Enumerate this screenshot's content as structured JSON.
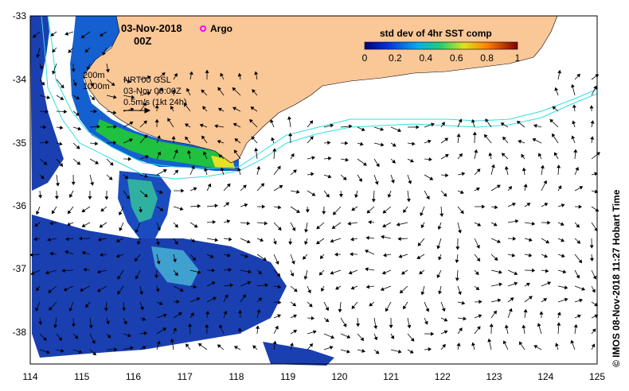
{
  "header": {
    "date": "03-Nov-2018",
    "time": "00Z",
    "argo_label": "Argo"
  },
  "colorbar": {
    "title": "std dev of 4hr SST comp",
    "ticks": [
      "0",
      "0.2",
      "0.4",
      "0.6",
      "0.8",
      "1"
    ]
  },
  "annotations": {
    "depth_200": "200m",
    "depth_1000": "1000m",
    "product": "NRT00 GSL",
    "product_time": "03-Nov 00:00Z",
    "scale_label": "0.5m/s (1kt 24h)"
  },
  "axes": {
    "x_ticks": [
      "114",
      "115",
      "116",
      "117",
      "118",
      "119",
      "120",
      "121",
      "122",
      "123",
      "124",
      "125"
    ],
    "y_ticks": [
      "-33",
      "-34",
      "-35",
      "-36",
      "-37",
      "-38"
    ]
  },
  "credit": "© IMOS 08-Nov-2018 11:27 Hobart Time",
  "colors": {
    "land": "#fac797",
    "contour": "#30e0e0",
    "argo": "#ff00ff"
  }
}
